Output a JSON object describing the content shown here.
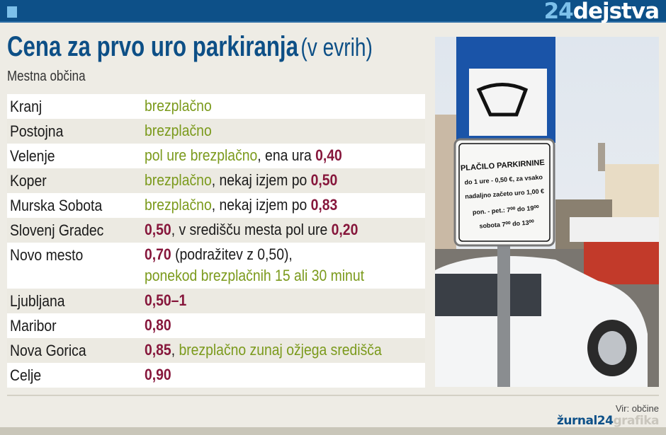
{
  "header": {
    "brand_number": "24",
    "brand_word": "dejstva"
  },
  "title": {
    "bold": "Cena za prvo uro parkiranja",
    "light": "(v evrih)"
  },
  "subtitle": "Mestna občina",
  "colors": {
    "header": "#0d5088",
    "free_green": "#7b9a1c",
    "price_maroon": "#86163b",
    "text": "#1a1a1a"
  },
  "rows": [
    {
      "city": "Kranj",
      "segments": [
        {
          "t": "brezplačno",
          "c": "g"
        }
      ]
    },
    {
      "city": "Postojna",
      "segments": [
        {
          "t": "brezplačno",
          "c": "g"
        }
      ]
    },
    {
      "city": "Velenje",
      "segments": [
        {
          "t": "pol ure brezplačno",
          "c": "g"
        },
        {
          "t": ", ena ura ",
          "c": "d"
        },
        {
          "t": "0,40",
          "c": "m"
        }
      ]
    },
    {
      "city": "Koper",
      "segments": [
        {
          "t": "brezplačno",
          "c": "g"
        },
        {
          "t": ", nekaj izjem po ",
          "c": "d"
        },
        {
          "t": "0,50",
          "c": "m"
        }
      ]
    },
    {
      "city": "Murska Sobota",
      "segments": [
        {
          "t": "brezplačno",
          "c": "g"
        },
        {
          "t": ", nekaj izjem po ",
          "c": "d"
        },
        {
          "t": "0,83",
          "c": "m"
        }
      ]
    },
    {
      "city": "Slovenj Gradec",
      "segments": [
        {
          "t": "0,50",
          "c": "m"
        },
        {
          "t": ", v središču mesta pol ure ",
          "c": "d"
        },
        {
          "t": "0,20",
          "c": "m"
        }
      ]
    },
    {
      "city": "Novo mesto",
      "segments": [
        {
          "t": "0,70",
          "c": "m"
        },
        {
          "t": " (podražitev z 0,50),",
          "c": "d"
        },
        {
          "t": "ponekod brezplačnih 15 ali 30 minut",
          "c": "g",
          "br": true
        }
      ]
    },
    {
      "city": "Ljubljana",
      "segments": [
        {
          "t": "0,50–1",
          "c": "m"
        }
      ]
    },
    {
      "city": "Maribor",
      "segments": [
        {
          "t": "0,80",
          "c": "m"
        }
      ]
    },
    {
      "city": "Nova Gorica",
      "segments": [
        {
          "t": "0,85",
          "c": "m"
        },
        {
          "t": ", ",
          "c": "d"
        },
        {
          "t": "brezplačno zunaj ožjega središča",
          "c": "g"
        }
      ]
    },
    {
      "city": "Celje",
      "segments": [
        {
          "t": "0,90",
          "c": "m"
        }
      ]
    }
  ],
  "photo": {
    "sign_lines": [
      "PLAČILO PARKIRNINE",
      "do 1 ure - 0,50 €, za vsako",
      "nadaljno začeto uro 1,00 €",
      "pon. - pet.: 7⁰⁰ do 19⁰⁰",
      "sobota 7⁰⁰ do 13⁰⁰"
    ]
  },
  "footer": {
    "source": "Vir: občine",
    "logo_a": "žurnal24",
    "logo_b": "grafika"
  }
}
